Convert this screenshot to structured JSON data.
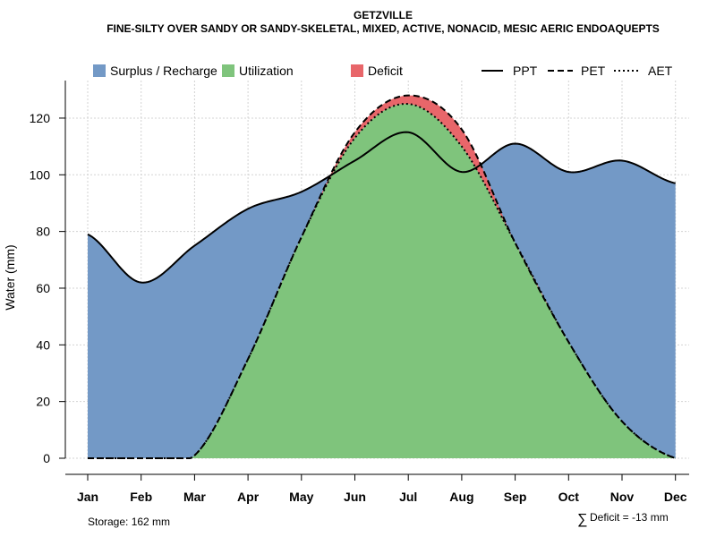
{
  "chart_data": {
    "type": "area",
    "title": "GETZVILLE",
    "subtitle": "FINE-SILTY OVER SANDY OR SANDY-SKELETAL, MIXED, ACTIVE, NONACID, MESIC AERIC ENDOAQUEPTS",
    "xlabel": "",
    "ylabel": "Water (mm)",
    "ylim": [
      0,
      132
    ],
    "yticks": [
      "0",
      "20",
      "40",
      "60",
      "80",
      "100",
      "120"
    ],
    "grid": true,
    "legend_position": "top",
    "categories": [
      "Jan",
      "Feb",
      "Mar",
      "Apr",
      "May",
      "Jun",
      "Jul",
      "Aug",
      "Sep",
      "Oct",
      "Nov",
      "Dec"
    ],
    "series": [
      {
        "name": "PPT",
        "line_style": "solid",
        "values": [
          79,
          62,
          75,
          88,
          94,
          105,
          115,
          101,
          111,
          101,
          105,
          97
        ]
      },
      {
        "name": "PET",
        "line_style": "dashed",
        "values": [
          0,
          0,
          1,
          35,
          78,
          115,
          128,
          116,
          76,
          41,
          13,
          0
        ]
      },
      {
        "name": "AET",
        "line_style": "dotted",
        "values": [
          0,
          0,
          1,
          35,
          78,
          113,
          125,
          110,
          76,
          41,
          13,
          0
        ]
      }
    ],
    "areas": [
      {
        "name": "Surplus / Recharge",
        "color": "#7399c6"
      },
      {
        "name": "Utilization",
        "color": "#7fc47c"
      },
      {
        "name": "Deficit",
        "color": "#e8666a"
      }
    ],
    "legend": {
      "surplus": "Surplus / Recharge",
      "utilization": "Utilization",
      "deficit": "Deficit",
      "ppt": "PPT",
      "pet": "PET",
      "aet": "AET"
    },
    "storage_label": "Storage: 162 mm",
    "deficit_symbol": "∑",
    "deficit_label": "Deficit = -13 mm"
  }
}
